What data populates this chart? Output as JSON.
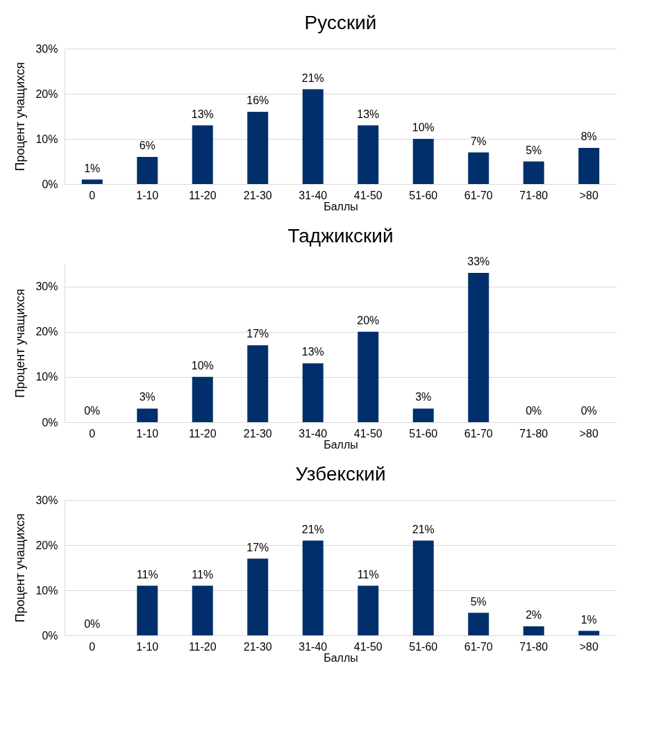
{
  "chart_data": [
    {
      "type": "bar",
      "title": "Русский",
      "xlabel": "Баллы",
      "ylabel": "Процент учащихся",
      "categories": [
        "0",
        "1-10",
        "11-20",
        "21-30",
        "31-40",
        "41-50",
        "51-60",
        "61-70",
        "71-80",
        ">80"
      ],
      "values": [
        1,
        6,
        13,
        16,
        21,
        13,
        10,
        7,
        5,
        8
      ],
      "value_labels": [
        "1%",
        "6%",
        "13%",
        "16%",
        "21%",
        "13%",
        "10%",
        "7%",
        "5%",
        "8%"
      ],
      "color": "#002f6c",
      "ylim": [
        0,
        30
      ],
      "yticks": [
        {
          "value": 0,
          "label": "0%"
        },
        {
          "value": 10,
          "label": "10%"
        },
        {
          "value": 20,
          "label": "20%"
        },
        {
          "value": 30,
          "label": "30%"
        }
      ],
      "grid": "y"
    },
    {
      "type": "bar",
      "title": "Таджикский",
      "xlabel": "Баллы",
      "ylabel": "Процент учащихся",
      "categories": [
        "0",
        "1-10",
        "11-20",
        "21-30",
        "31-40",
        "41-50",
        "51-60",
        "61-70",
        "71-80",
        ">80"
      ],
      "values": [
        0,
        3,
        10,
        17,
        13,
        20,
        3,
        33,
        0,
        0
      ],
      "value_labels": [
        "0%",
        "3%",
        "10%",
        "17%",
        "13%",
        "20%",
        "3%",
        "33%",
        "0%",
        "0%"
      ],
      "color": "#002f6c",
      "ylim": [
        0,
        35
      ],
      "yticks": [
        {
          "value": 0,
          "label": "0%"
        },
        {
          "value": 10,
          "label": "10%"
        },
        {
          "value": 20,
          "label": "20%"
        },
        {
          "value": 30,
          "label": "30%"
        }
      ],
      "grid": "y"
    },
    {
      "type": "bar",
      "title": "Узбекский",
      "xlabel": "Баллы",
      "ylabel": "Процент учащихся",
      "categories": [
        "0",
        "1-10",
        "11-20",
        "21-30",
        "31-40",
        "41-50",
        "51-60",
        "61-70",
        "71-80",
        ">80"
      ],
      "values": [
        0,
        11,
        11,
        17,
        21,
        11,
        21,
        5,
        2,
        1
      ],
      "value_labels": [
        "0%",
        "11%",
        "11%",
        "17%",
        "21%",
        "11%",
        "21%",
        "5%",
        "2%",
        "1%"
      ],
      "color": "#002f6c",
      "ylim": [
        0,
        30
      ],
      "yticks": [
        {
          "value": 0,
          "label": "0%"
        },
        {
          "value": 10,
          "label": "10%"
        },
        {
          "value": 20,
          "label": "20%"
        },
        {
          "value": 30,
          "label": "30%"
        }
      ],
      "grid": "y"
    }
  ]
}
